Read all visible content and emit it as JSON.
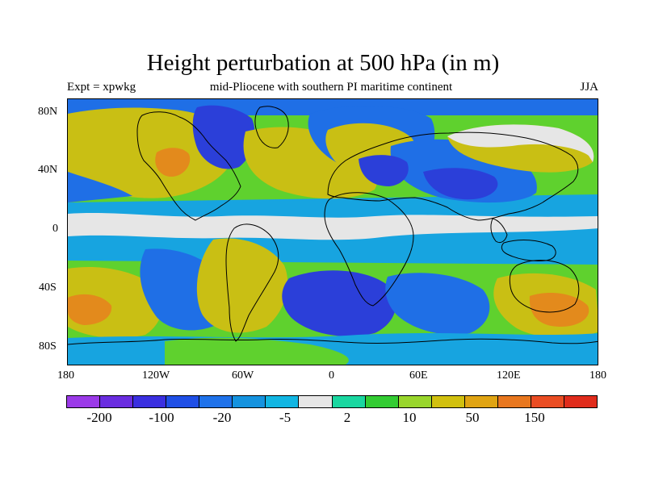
{
  "title": "Height perturbation at 500 hPa (in m)",
  "experiment": "Expt = xpwkg",
  "subtitle": "mid-Pliocene with southern PI maritime continent",
  "season": "JJA",
  "y_axis": {
    "labels": [
      "80N",
      "40N",
      "0",
      "40S",
      "80S"
    ]
  },
  "x_axis": {
    "labels": [
      "180",
      "120W",
      "60W",
      "0",
      "60E",
      "120E",
      "180"
    ]
  },
  "colorbar": {
    "labels": [
      "-200",
      "-100",
      "-20",
      "-5",
      "2",
      "10",
      "50",
      "150"
    ],
    "colors": [
      "#9b3ae8",
      "#6a2de0",
      "#3a2fe0",
      "#1f4fe6",
      "#1f72ea",
      "#1593df",
      "#12b6e3",
      "#e6e6e6",
      "#1ad7a0",
      "#33cc33",
      "#99d62c",
      "#d1c00f",
      "#e0a413",
      "#e8771f",
      "#ea4d23",
      "#e02c1c"
    ]
  },
  "palette": {
    "strong_neg": "#2b3fd9",
    "neg": "#1f6fe6",
    "weak_neg": "#17a4e0",
    "neutral": "#e6e6e6",
    "weak_pos": "#19d89a",
    "pos": "#5fd12e",
    "strong_pos": "#c9bf14",
    "very_pos": "#e38a1c",
    "extreme_pos": "#e55a22"
  }
}
